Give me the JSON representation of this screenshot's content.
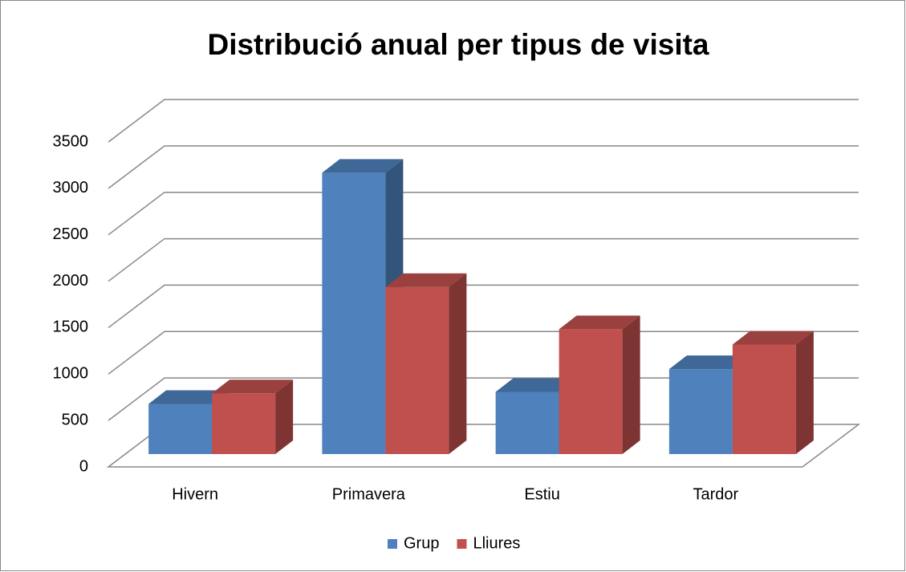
{
  "chart_data": {
    "type": "bar3d",
    "title": "Distribució anual per tipus de visita",
    "categories": [
      "Hivern",
      "Primavera",
      "Estiu",
      "Tardor"
    ],
    "series": [
      {
        "name": "Grup",
        "color": "#4f81bd",
        "values": [
          540,
          3030,
          670,
          915
        ]
      },
      {
        "name": "Lliures",
        "color": "#c0504d",
        "values": [
          655,
          1800,
          1345,
          1180
        ]
      }
    ],
    "ylim": [
      0,
      3500
    ],
    "yticks": [
      0,
      500,
      1000,
      1500,
      2000,
      2500,
      3000,
      3500
    ],
    "grid": true,
    "legend": "bottom"
  }
}
